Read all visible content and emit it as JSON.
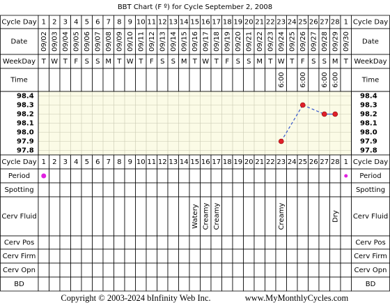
{
  "title": "BBT Chart (F º) for Cycle September 2, 2008",
  "row_labels": {
    "cycle_day": "Cycle Day",
    "date": "Date",
    "weekday": "WeekDay",
    "time": "Time",
    "period": "Period",
    "spotting": "Spotting",
    "cerv_fluid": "Cerv Fluid",
    "cerv_pos": "Cerv Pos",
    "cerv_firm": "Cerv Firm",
    "cerv_opn": "Cerv Opn",
    "bd": "BD"
  },
  "cycle_days": [
    1,
    2,
    3,
    4,
    5,
    6,
    7,
    8,
    9,
    10,
    11,
    12,
    13,
    14,
    15,
    16,
    17,
    18,
    19,
    20,
    21,
    22,
    23,
    24,
    25,
    26,
    27,
    28,
    1
  ],
  "dates": [
    "09/02",
    "09/03",
    "09/04",
    "09/05",
    "09/06",
    "09/07",
    "09/08",
    "09/09",
    "09/10",
    "09/11",
    "09/12",
    "09/13",
    "09/14",
    "09/15",
    "09/16",
    "09/17",
    "09/18",
    "09/19",
    "09/20",
    "09/21",
    "09/22",
    "09/23",
    "09/24",
    "09/25",
    "09/26",
    "09/27",
    "09/28",
    "09/29",
    "09/30"
  ],
  "weekdays": [
    "T",
    "W",
    "T",
    "F",
    "S",
    "S",
    "M",
    "T",
    "W",
    "T",
    "F",
    "S",
    "S",
    "M",
    "T",
    "W",
    "T",
    "F",
    "S",
    "S",
    "M",
    "T",
    "W",
    "T",
    "F",
    "S",
    "S",
    "M",
    "T"
  ],
  "times": [
    null,
    null,
    null,
    null,
    null,
    null,
    null,
    null,
    null,
    null,
    null,
    null,
    null,
    null,
    null,
    null,
    null,
    null,
    null,
    null,
    null,
    null,
    "6:00",
    null,
    "6:00",
    null,
    "6:00",
    "6:00",
    null
  ],
  "chart_data": {
    "type": "line",
    "values": [
      null,
      null,
      null,
      null,
      null,
      null,
      null,
      null,
      null,
      null,
      null,
      null,
      null,
      null,
      null,
      null,
      null,
      null,
      null,
      null,
      null,
      null,
      97.9,
      null,
      98.3,
      null,
      98.2,
      98.2,
      null
    ],
    "color": "#3355cc",
    "marker_color": "#e0202a",
    "ylim": [
      97.75,
      98.45
    ],
    "yticks": [
      98.4,
      98.3,
      98.2,
      98.1,
      {
        "value": 98.0,
        "label": "98.0"
      },
      97.9,
      97.8
    ],
    "grid": true
  },
  "period": [
    true,
    false,
    false,
    false,
    false,
    false,
    false,
    false,
    false,
    false,
    false,
    false,
    false,
    false,
    false,
    false,
    false,
    false,
    false,
    false,
    false,
    false,
    false,
    false,
    false,
    false,
    false,
    false,
    true
  ],
  "cerv_fluid": [
    null,
    null,
    null,
    null,
    null,
    null,
    null,
    null,
    null,
    null,
    null,
    null,
    null,
    null,
    "Watery",
    "Creamy",
    "Creamy",
    null,
    null,
    null,
    null,
    null,
    "Creamy",
    null,
    null,
    null,
    null,
    "Dry",
    null
  ],
  "footer": {
    "copyright": "Copyright © 2003-2024 bInfinity Web Inc.",
    "url": "www.MyMonthlyCycles.com"
  }
}
